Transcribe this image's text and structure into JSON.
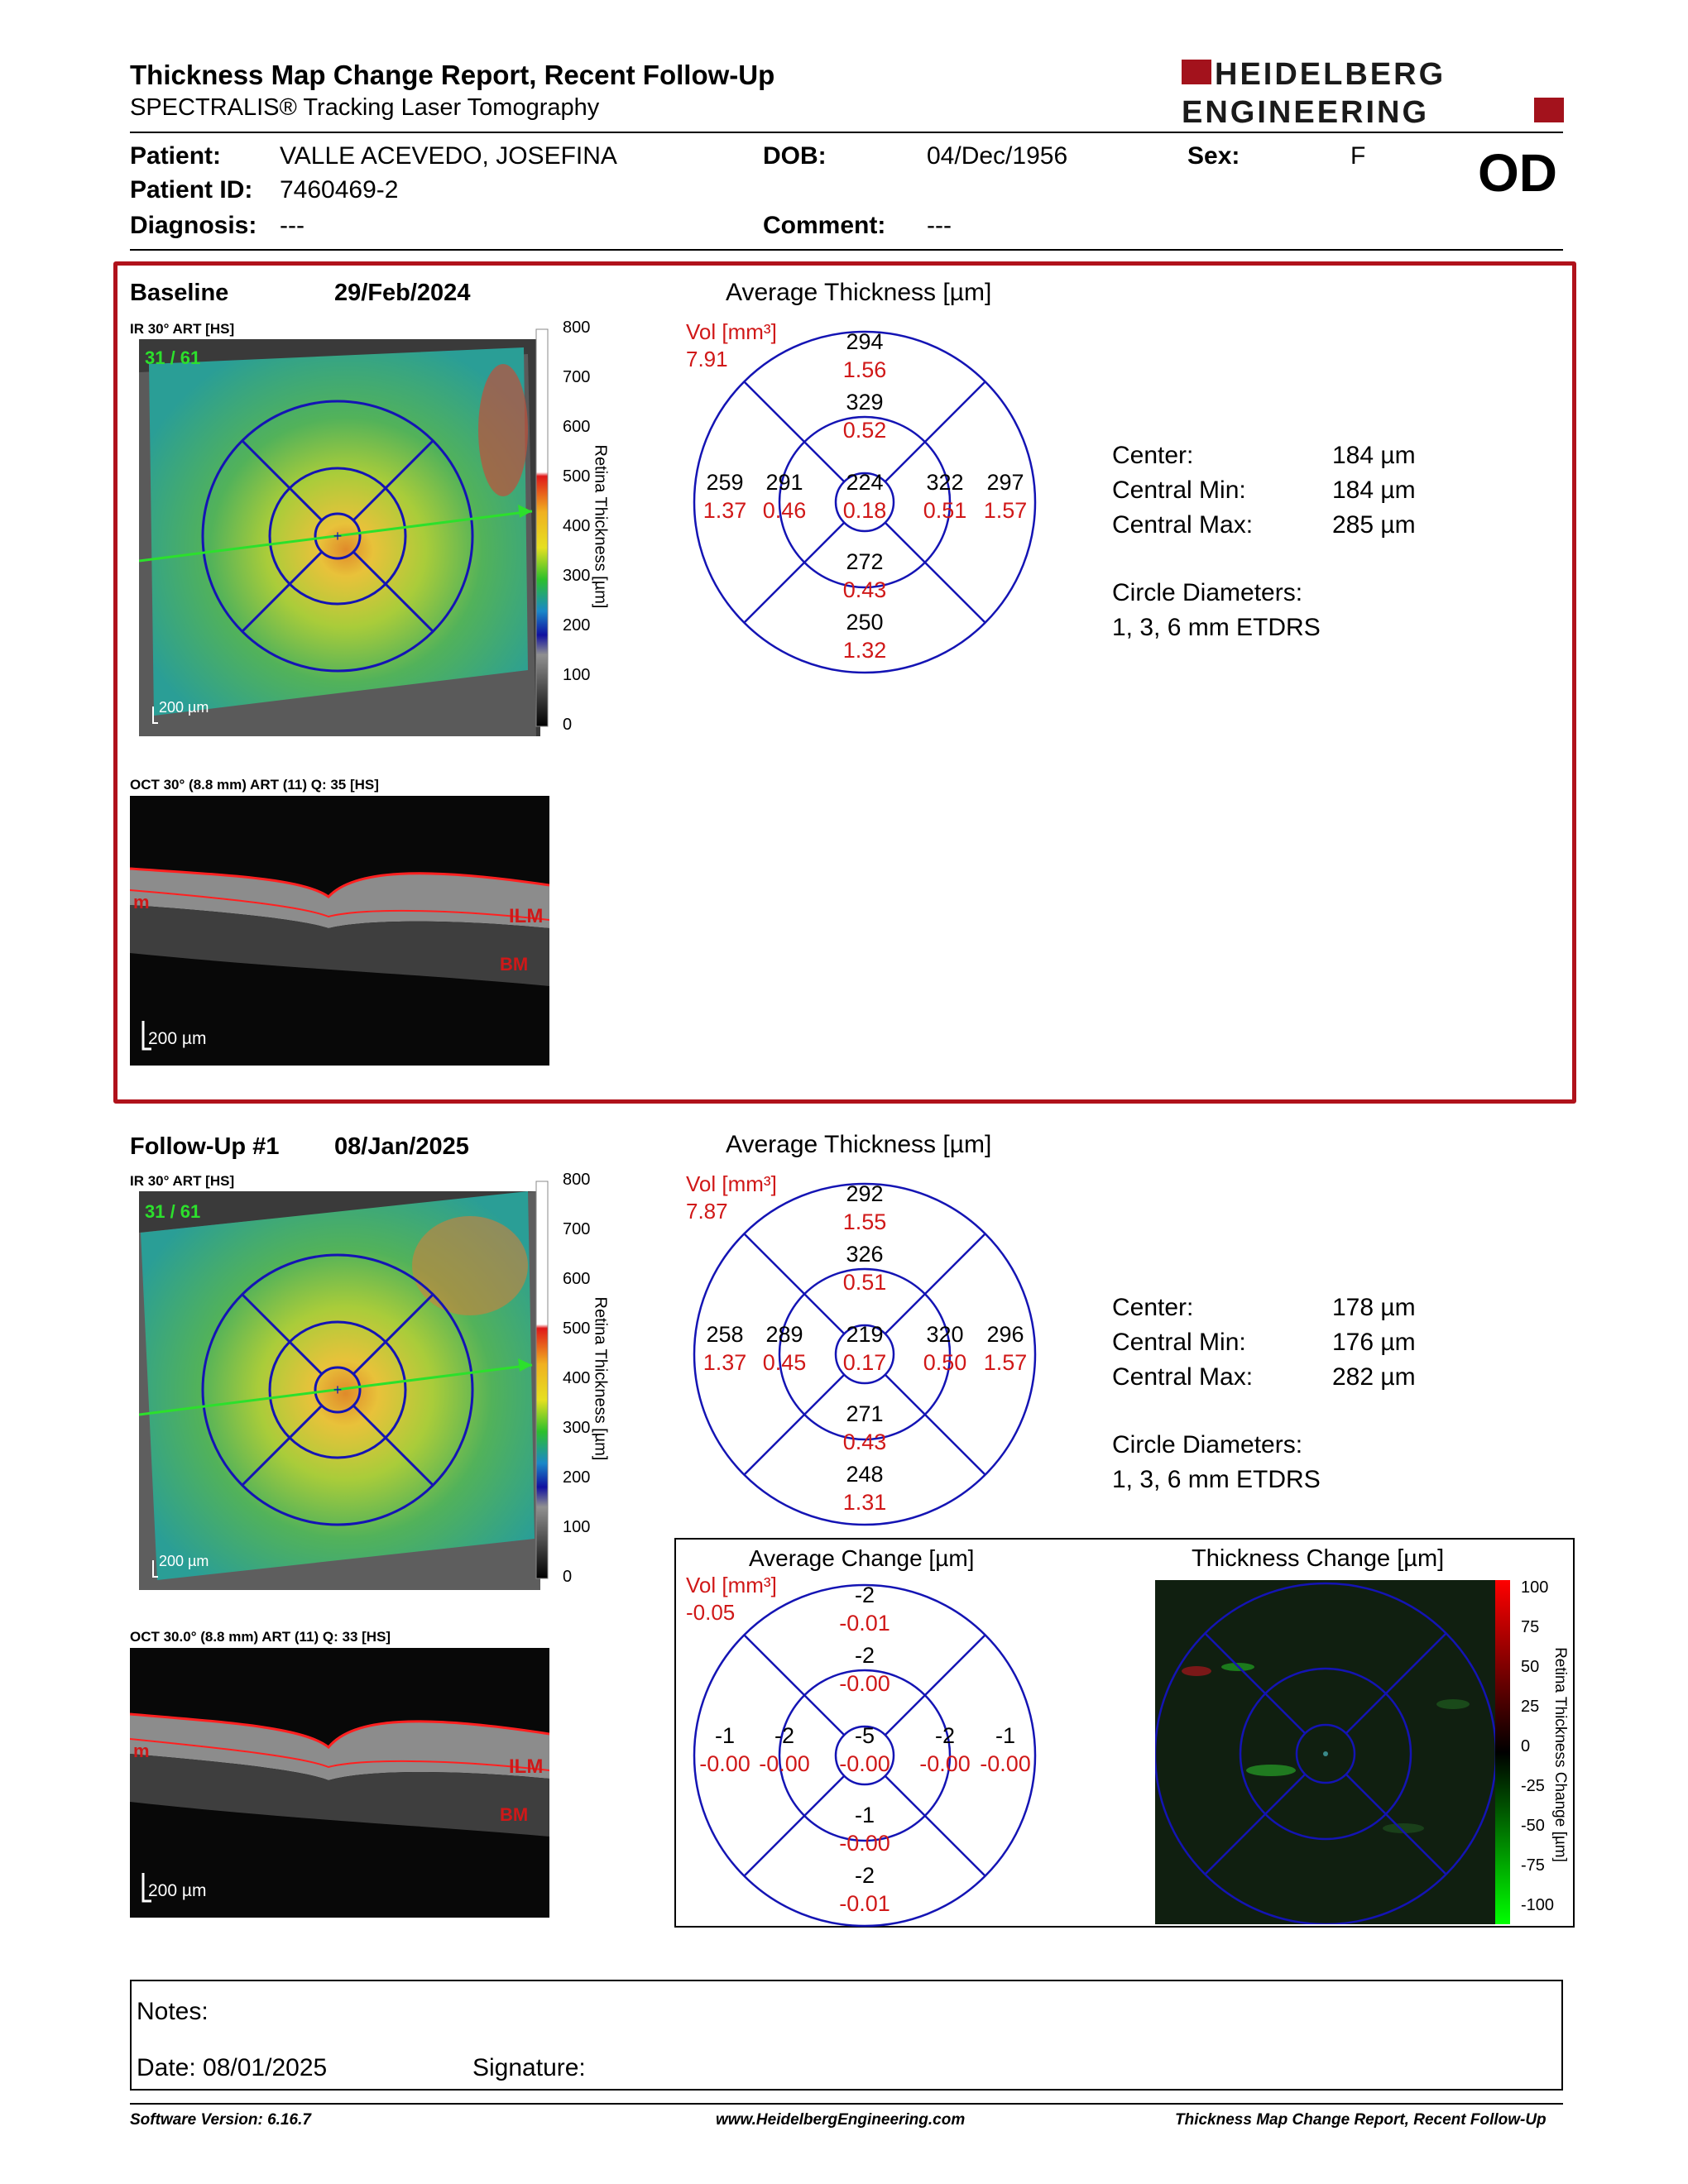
{
  "header": {
    "title": "Thickness Map Change Report, Recent Follow-Up",
    "subtitle": "SPECTRALIS® Tracking Laser Tomography",
    "logo_line1": "HEIDELBERG",
    "logo_line2": "ENGINEERING"
  },
  "patient": {
    "patient_label": "Patient:",
    "patient_name": "VALLE ACEVEDO, JOSEFINA",
    "dob_label": "DOB:",
    "dob": "04/Dec/1956",
    "sex_label": "Sex:",
    "sex": "F",
    "eye": "OD",
    "id_label": "Patient ID:",
    "id": "7460469-2",
    "diagnosis_label": "Diagnosis:",
    "diagnosis": "---",
    "comment_label": "Comment:",
    "comment": "---"
  },
  "baseline": {
    "label": "Baseline",
    "date": "29/Feb/2024",
    "ir_caption": "IR 30° ART [HS]",
    "frame": "31 / 61",
    "scale": "200 µm",
    "oct_caption": "OCT 30° (8.8 mm) ART (11) Q: 35 [HS]",
    "oct_scale": "200 µm",
    "layer_ilm": "ILM",
    "layer_bm": "BM",
    "layer_left": "m",
    "avg_title": "Average Thickness [µm]",
    "vol_label": "Vol [mm³]",
    "vol_total": "7.91",
    "grid": {
      "outer_sup": {
        "t": "294",
        "v": "1.56"
      },
      "inner_sup": {
        "t": "329",
        "v": "0.52"
      },
      "outer_temp": {
        "t": "259",
        "v": "1.37"
      },
      "inner_temp": {
        "t": "291",
        "v": "0.46"
      },
      "center": {
        "t": "224",
        "v": "0.18"
      },
      "inner_nas": {
        "t": "322",
        "v": "0.51"
      },
      "outer_nas": {
        "t": "297",
        "v": "1.57"
      },
      "inner_inf": {
        "t": "272",
        "v": "0.43"
      },
      "outer_inf": {
        "t": "250",
        "v": "1.32"
      }
    },
    "center_label": "Center:",
    "center_val": "184 µm",
    "cmin_label": "Central Min:",
    "cmin_val": "184 µm",
    "cmax_label": "Central Max:",
    "cmax_val": "285 µm",
    "circ_label": "Circle Diameters:",
    "circ_val": "1, 3, 6 mm ETDRS"
  },
  "followup": {
    "label": "Follow-Up #1",
    "date": "08/Jan/2025",
    "ir_caption": "IR 30° ART [HS]",
    "frame": "31 / 61",
    "scale": "200 µm",
    "oct_caption": "OCT 30.0° (8.8 mm) ART (11) Q: 33 [HS]",
    "oct_scale": "200 µm",
    "layer_ilm": "ILM",
    "layer_bm": "BM",
    "layer_left": "m",
    "avg_title": "Average Thickness [µm]",
    "vol_label": "Vol [mm³]",
    "vol_total": "7.87",
    "grid": {
      "outer_sup": {
        "t": "292",
        "v": "1.55"
      },
      "inner_sup": {
        "t": "326",
        "v": "0.51"
      },
      "outer_temp": {
        "t": "258",
        "v": "1.37"
      },
      "inner_temp": {
        "t": "289",
        "v": "0.45"
      },
      "center": {
        "t": "219",
        "v": "0.17"
      },
      "inner_nas": {
        "t": "320",
        "v": "0.50"
      },
      "outer_nas": {
        "t": "296",
        "v": "1.57"
      },
      "inner_inf": {
        "t": "271",
        "v": "0.43"
      },
      "outer_inf": {
        "t": "248",
        "v": "1.31"
      }
    },
    "center_label": "Center:",
    "center_val": "178 µm",
    "cmin_label": "Central Min:",
    "cmin_val": "176 µm",
    "cmax_label": "Central Max:",
    "cmax_val": "282 µm",
    "circ_label": "Circle Diameters:",
    "circ_val": "1, 3, 6 mm ETDRS"
  },
  "thickness_colorbar": {
    "title": "Retina Thickness [µm]",
    "ticks": [
      "800",
      "700",
      "600",
      "500",
      "400",
      "300",
      "200",
      "100",
      "0"
    ]
  },
  "change": {
    "avg_title": "Average Change [µm]",
    "vol_label": "Vol [mm³]",
    "vol_total": "-0.05",
    "grid": {
      "outer_sup": {
        "t": "-2",
        "v": "-0.01"
      },
      "inner_sup": {
        "t": "-2",
        "v": "-0.00"
      },
      "outer_temp": {
        "t": "-1",
        "v": "-0.00"
      },
      "inner_temp": {
        "t": "-2",
        "v": "-0.00"
      },
      "center": {
        "t": "-5",
        "v": "-0.00"
      },
      "inner_nas": {
        "t": "-2",
        "v": "-0.00"
      },
      "outer_nas": {
        "t": "-1",
        "v": "-0.00"
      },
      "inner_inf": {
        "t": "-1",
        "v": "-0.00"
      },
      "outer_inf": {
        "t": "-2",
        "v": "-0.01"
      }
    },
    "map_title": "Thickness Change [µm]",
    "cbar_title": "Retina Thickness Change [µm]",
    "cbar_ticks": [
      "100",
      "75",
      "50",
      "25",
      "0",
      "-25",
      "-50",
      "-75",
      "-100"
    ]
  },
  "notes": {
    "notes_label": "Notes:",
    "date_label": "Date: 08/01/2025",
    "signature_label": "Signature:"
  },
  "footer": {
    "software": "Software Version: 6.16.7",
    "website": "www.HeidelbergEngineering.com",
    "report": "Thickness Map Change Report, Recent Follow-Up"
  },
  "colors": {
    "panel_border": "#b0121b",
    "grid_blue": "#1414b4",
    "volume_red": "#d01818",
    "logo_red": "#a3121c"
  }
}
